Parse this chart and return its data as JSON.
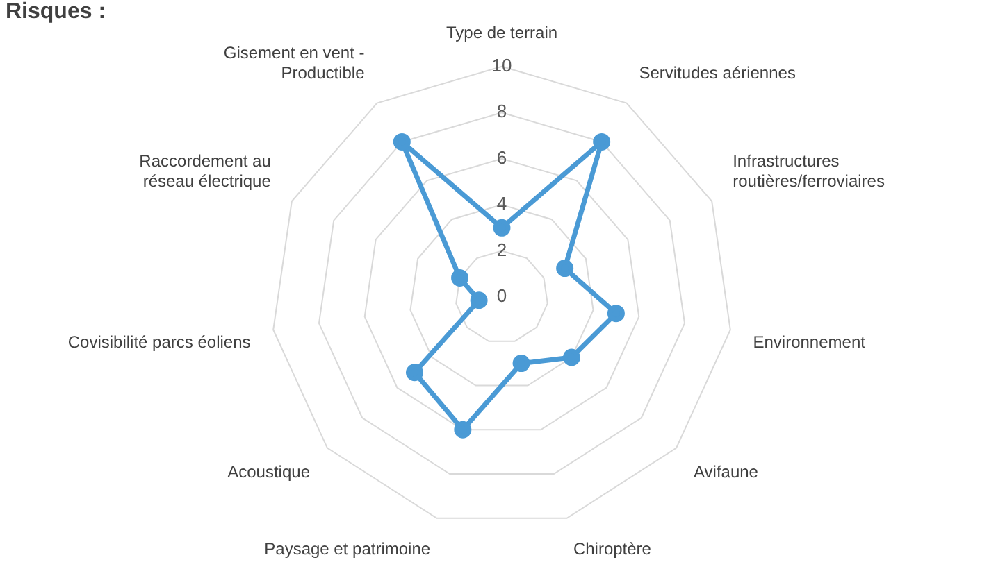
{
  "chart_data": {
    "type": "radar",
    "title": "Risques :",
    "categories": [
      "Type de terrain",
      "Servitudes aériennes",
      "Infrastructures\nroutières/ferroviaires",
      "Environnement",
      "Avifaune",
      "Chiroptère",
      "Paysage et patrimoine",
      "Acoustique",
      "Covisibilité parcs éoliens",
      "Raccordement au\nréseau électrique",
      "Gisement en vent -\nProductible"
    ],
    "series": [
      {
        "color": "#4a9ad5",
        "values": [
          3,
          8,
          3,
          5,
          4,
          3,
          6,
          5,
          1,
          2,
          8
        ]
      }
    ],
    "ylim": [
      0,
      10
    ],
    "yticks": [
      0,
      2,
      4,
      6,
      8,
      10
    ],
    "grid": true,
    "legend": false,
    "marker": "circle",
    "line_style": "solid"
  }
}
